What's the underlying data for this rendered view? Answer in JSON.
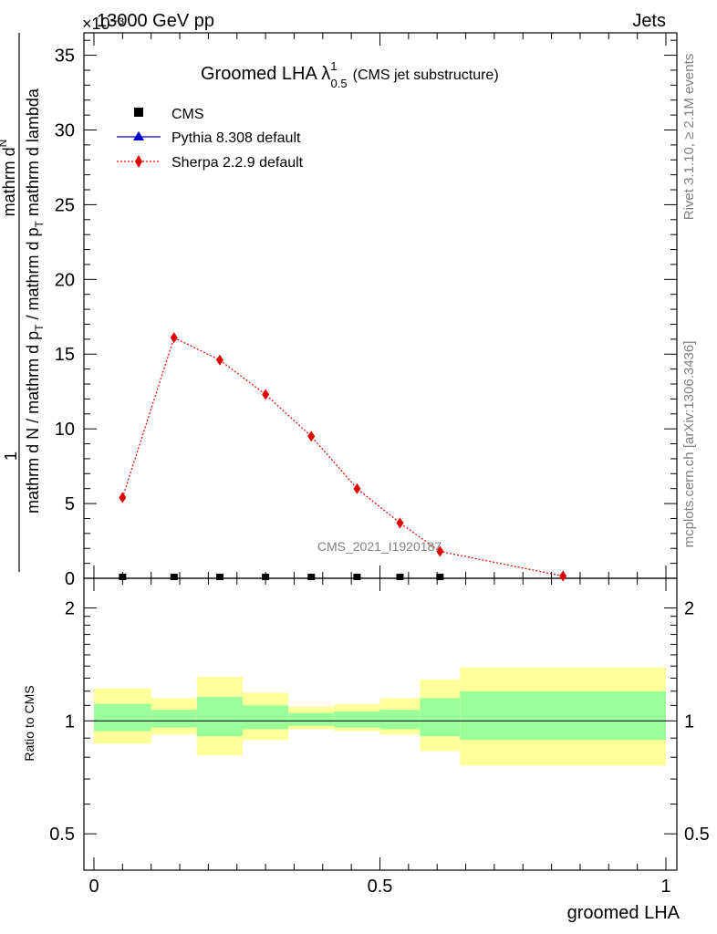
{
  "header": {
    "energy_label": "13000 GeV pp",
    "category_label": "Jets",
    "exponent_label": "×10⁻³",
    "right_rivet": "Rivet 3.1.10, ≥ 2.1M events",
    "right_mcplots": "mcplots.cern.ch [arXiv:1306.3436]",
    "watermark": "CMS_2021_I1920187"
  },
  "colors": {
    "sherpa": "#e00000",
    "pythia": "#0000cc",
    "cms": "#000000",
    "band_inner": "#99ff99",
    "band_outer": "#ffff99"
  },
  "chart_data": [
    {
      "type": "line",
      "title_main": "Groomed LHA",
      "title_lambda": "λ",
      "title_sup": "1",
      "title_sub": "0.5",
      "title_note": "(CMS jet substructure)",
      "ylabel_top": "1",
      "ylabel_num": "mathrm d N / mathrm d p",
      "ylabel_num_sub": "T",
      "ylabel_num_tail": "mathrm d lambda",
      "ylabel_frac_top": "mathrm d",
      "ylabel_frac_top2": "N",
      "ylabel_frac_bot": "mathrm d N / mathrm d p",
      "ylabel_frac_bot_sub": "T",
      "ylabel_frac_bot_tail": "mathrm d p",
      "ylabel_frac_bot_tail_sub": "T",
      "ylabel_frac_bot_end": "mathrm d lambda",
      "ylim": [
        0,
        36.5
      ],
      "xlim": [
        0,
        1
      ],
      "yticks": [
        0,
        5,
        10,
        15,
        20,
        25,
        30,
        35
      ],
      "ytick_labels": [
        "0",
        "5",
        "10",
        "15",
        "20",
        "25",
        "30",
        "35"
      ],
      "legend": [
        {
          "name": "CMS",
          "marker": "square"
        },
        {
          "name": "Pythia 8.308 default",
          "marker": "triangle"
        },
        {
          "name": "Sherpa 2.2.9 default",
          "marker": "diamond"
        }
      ],
      "series": [
        {
          "name": "Sherpa 2.2.9 default",
          "x": [
            0.05,
            0.14,
            0.22,
            0.3,
            0.38,
            0.46,
            0.535,
            0.605,
            0.82
          ],
          "values": [
            5.4,
            16.1,
            14.6,
            12.3,
            9.5,
            6.0,
            3.7,
            1.8,
            0.15
          ]
        },
        {
          "name": "CMS",
          "x": [
            0.05,
            0.14,
            0.22,
            0.3,
            0.38,
            0.46,
            0.535,
            0.605
          ],
          "values": [
            0,
            0,
            0,
            0,
            0,
            0,
            0,
            0
          ]
        },
        {
          "name": "Pythia 8.308 default",
          "x": [
            0.05,
            0.14,
            0.22,
            0.3,
            0.38,
            0.46,
            0.535,
            0.605
          ],
          "values": [
            0,
            0,
            0,
            0,
            0,
            0,
            0,
            0
          ]
        }
      ]
    },
    {
      "type": "area",
      "ylabel": "Ratio to CMS",
      "xlabel": "groomed LHA",
      "xlim": [
        0,
        1
      ],
      "ylim": [
        0.4,
        2.4
      ],
      "log_y": true,
      "yticks": [
        0.5,
        1,
        2
      ],
      "ytick_labels": [
        "0.5",
        "1",
        "2"
      ],
      "xticks": [
        0,
        0.5,
        1
      ],
      "xtick_labels": [
        "0",
        "0.5",
        "1"
      ],
      "bins": [
        {
          "x_low": 0.0,
          "x_high": 0.1,
          "inner": [
            0.94,
            1.11
          ],
          "outer": [
            0.87,
            1.22
          ]
        },
        {
          "x_low": 0.1,
          "x_high": 0.18,
          "inner": [
            0.96,
            1.07
          ],
          "outer": [
            0.92,
            1.15
          ]
        },
        {
          "x_low": 0.18,
          "x_high": 0.26,
          "inner": [
            0.91,
            1.16
          ],
          "outer": [
            0.81,
            1.31
          ]
        },
        {
          "x_low": 0.26,
          "x_high": 0.34,
          "inner": [
            0.95,
            1.1
          ],
          "outer": [
            0.89,
            1.19
          ]
        },
        {
          "x_low": 0.34,
          "x_high": 0.42,
          "inner": [
            0.97,
            1.05
          ],
          "outer": [
            0.95,
            1.09
          ]
        },
        {
          "x_low": 0.42,
          "x_high": 0.5,
          "inner": [
            0.96,
            1.06
          ],
          "outer": [
            0.94,
            1.11
          ]
        },
        {
          "x_low": 0.5,
          "x_high": 0.57,
          "inner": [
            0.95,
            1.07
          ],
          "outer": [
            0.92,
            1.15
          ]
        },
        {
          "x_low": 0.57,
          "x_high": 0.64,
          "inner": [
            0.91,
            1.15
          ],
          "outer": [
            0.83,
            1.29
          ]
        },
        {
          "x_low": 0.64,
          "x_high": 1.0,
          "inner": [
            0.89,
            1.2
          ],
          "outer": [
            0.76,
            1.39
          ]
        }
      ]
    }
  ]
}
